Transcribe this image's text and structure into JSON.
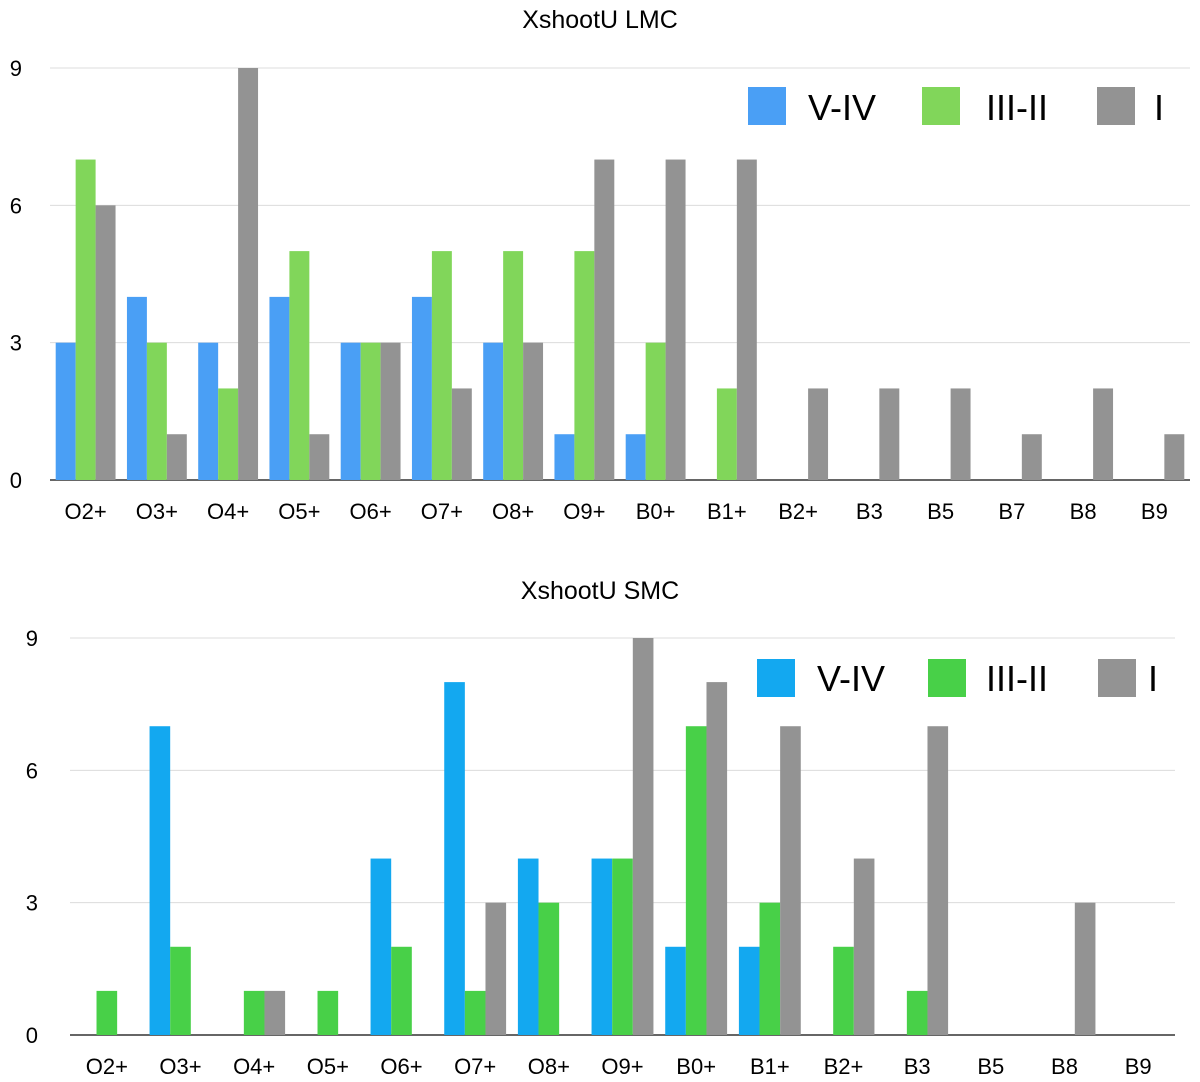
{
  "chart_data": [
    {
      "type": "bar",
      "title": "XshootU LMC",
      "xlabel": "",
      "ylabel": "",
      "ylim": [
        0,
        9
      ],
      "yticks": [
        0,
        3,
        6,
        9
      ],
      "grid": true,
      "legend_position": "top-right",
      "categories": [
        "O2+",
        "O3+",
        "O4+",
        "O5+",
        "O6+",
        "O7+",
        "O8+",
        "O9+",
        "B0+",
        "B1+",
        "B2+",
        "B3",
        "B5",
        "B7",
        "B8",
        "B9"
      ],
      "series": [
        {
          "name": "V-IV",
          "color": "#4a9ff5",
          "values": [
            3,
            4,
            3,
            4,
            3,
            4,
            3,
            1,
            1,
            0,
            0,
            0,
            0,
            0,
            0,
            0
          ]
        },
        {
          "name": "III-II",
          "color": "#81d65a",
          "values": [
            7,
            3,
            2,
            5,
            3,
            5,
            5,
            5,
            3,
            2,
            0,
            0,
            0,
            0,
            0,
            0
          ]
        },
        {
          "name": "I",
          "color": "#939393",
          "values": [
            6,
            1,
            9,
            1,
            3,
            2,
            3,
            7,
            7,
            7,
            2,
            2,
            2,
            1,
            2,
            1
          ]
        }
      ]
    },
    {
      "type": "bar",
      "title": "XshootU SMC",
      "xlabel": "",
      "ylabel": "",
      "ylim": [
        0,
        9
      ],
      "yticks": [
        0,
        3,
        6,
        9
      ],
      "grid": true,
      "legend_position": "top-right",
      "categories": [
        "O2+",
        "O3+",
        "O4+",
        "O5+",
        "O6+",
        "O7+",
        "O8+",
        "O9+",
        "B0+",
        "B1+",
        "B2+",
        "B3",
        "B5",
        "B8",
        "B9"
      ],
      "series": [
        {
          "name": "V-IV",
          "color": "#13a8f0",
          "values": [
            0,
            7,
            0,
            0,
            4,
            8,
            4,
            4,
            2,
            2,
            0,
            0,
            0,
            0,
            0
          ]
        },
        {
          "name": "III-II",
          "color": "#48d048",
          "values": [
            1,
            2,
            1,
            1,
            2,
            1,
            3,
            4,
            7,
            3,
            2,
            1,
            0,
            0,
            0
          ]
        },
        {
          "name": "I",
          "color": "#939393",
          "values": [
            0,
            0,
            1,
            0,
            0,
            3,
            0,
            9,
            8,
            7,
            4,
            7,
            0,
            3,
            0
          ]
        }
      ]
    }
  ]
}
